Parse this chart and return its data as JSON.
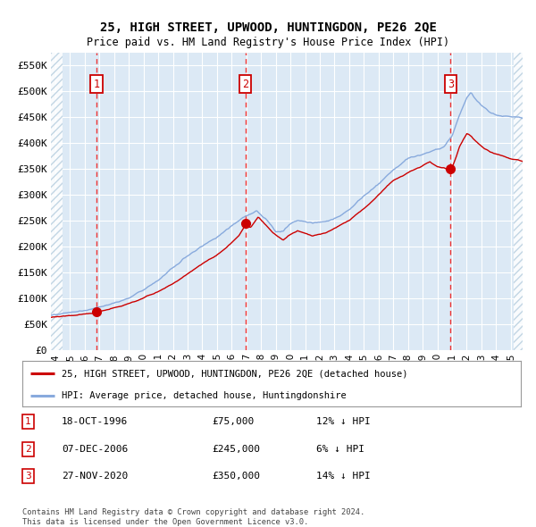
{
  "title": "25, HIGH STREET, UPWOOD, HUNTINGDON, PE26 2QE",
  "subtitle": "Price paid vs. HM Land Registry's House Price Index (HPI)",
  "bg_color": "#dce9f5",
  "hatch_color": "#b8cfe0",
  "grid_color": "#ffffff",
  "sale_color": "#cc0000",
  "hpi_color": "#88aadd",
  "dashed_color": "#ee3333",
  "ylim": [
    0,
    575000
  ],
  "yticks": [
    0,
    50000,
    100000,
    150000,
    200000,
    250000,
    300000,
    350000,
    400000,
    450000,
    500000,
    550000
  ],
  "ytick_labels": [
    "£0",
    "£50K",
    "£100K",
    "£150K",
    "£200K",
    "£250K",
    "£300K",
    "£350K",
    "£400K",
    "£450K",
    "£500K",
    "£550K"
  ],
  "xlim_start": 1993.7,
  "xlim_end": 2025.8,
  "xticks": [
    1994,
    1995,
    1996,
    1997,
    1998,
    1999,
    2000,
    2001,
    2002,
    2003,
    2004,
    2005,
    2006,
    2007,
    2008,
    2009,
    2010,
    2011,
    2012,
    2013,
    2014,
    2015,
    2016,
    2017,
    2018,
    2019,
    2020,
    2021,
    2022,
    2023,
    2024,
    2025
  ],
  "purchases": [
    {
      "num": 1,
      "date": "18-OCT-1996",
      "year": 1996.79,
      "price": 75000,
      "pct": "12%",
      "dir": "↓"
    },
    {
      "num": 2,
      "date": "07-DEC-2006",
      "year": 2006.93,
      "price": 245000,
      "pct": "6%",
      "dir": "↓"
    },
    {
      "num": 3,
      "date": "27-NOV-2020",
      "year": 2020.9,
      "price": 350000,
      "pct": "14%",
      "dir": "↓"
    }
  ],
  "legend_sale_label": "25, HIGH STREET, UPWOOD, HUNTINGDON, PE26 2QE (detached house)",
  "legend_hpi_label": "HPI: Average price, detached house, Huntingdonshire",
  "footer": "Contains HM Land Registry data © Crown copyright and database right 2024.\nThis data is licensed under the Open Government Licence v3.0.",
  "hatch_left_end": 1994.5,
  "hatch_right_start": 2025.2
}
